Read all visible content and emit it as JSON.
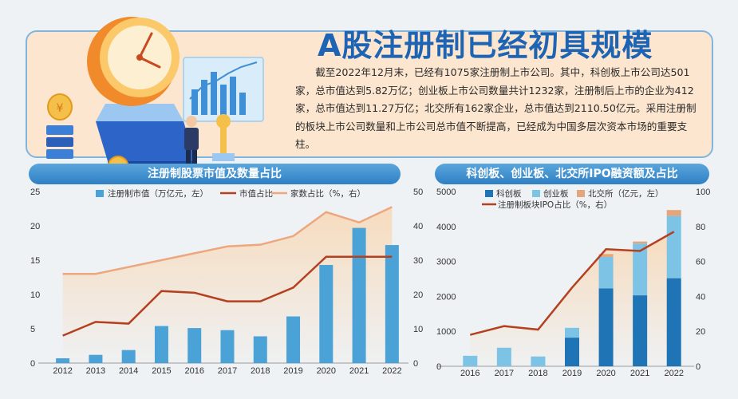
{
  "header": {
    "title": "A股注册制已经初具规模",
    "intro": "截至2022年12月末，已经有1075家注册制上市公司。其中，科创板上市公司达501家，总市值达到5.82万亿；创业板上市公司数量共计1232家，注册制后上市的企业为412家，总市值达到11.27万亿；北交所有162家企业，总市值达到2110.50亿元。采用注册制的板块上市公司数量和上市公司总市值不断提高，已经成为中国多层次资本市场的重要支柱。"
  },
  "colors": {
    "bar_blue": "#4aa2d6",
    "line_red": "#b5401f",
    "line_orange": "#eda77f",
    "star": "#1f74b6",
    "chinext": "#7cc3e6",
    "bse": "#e2a57c"
  },
  "chart_data": [
    {
      "type": "bar",
      "title": "注册制股票市值及数量占比",
      "categories": [
        "2012",
        "2013",
        "2014",
        "2015",
        "2016",
        "2017",
        "2018",
        "2019",
        "2020",
        "2021",
        "2022"
      ],
      "series": [
        {
          "name": "注册制市值（万亿元，左）",
          "type": "bar",
          "axis": "left",
          "values": [
            0.7,
            1.2,
            1.9,
            5.4,
            5.1,
            4.8,
            3.9,
            6.8,
            14.3,
            19.7,
            17.2
          ]
        },
        {
          "name": "市值占比",
          "type": "line",
          "axis": "right",
          "values": [
            8,
            12,
            11.5,
            21,
            20.5,
            18,
            18,
            22,
            31,
            31,
            31
          ]
        },
        {
          "name": "家数占比（%，右）",
          "type": "line",
          "axis": "right",
          "values": [
            26,
            26,
            28,
            30,
            32,
            34,
            34.5,
            37,
            44,
            41,
            45.5
          ]
        }
      ],
      "left_axis": {
        "min": 0,
        "max": 25,
        "ticks": [
          0,
          5,
          10,
          15,
          20,
          25
        ]
      },
      "right_axis": {
        "min": 0,
        "max": 50,
        "ticks": [
          0,
          10,
          20,
          30,
          40,
          50
        ]
      },
      "grid": false,
      "legend": "top"
    },
    {
      "type": "bar",
      "stacked": true,
      "title": "科创板、创业板、北交所IPO融资额及占比",
      "categories": [
        "2016",
        "2017",
        "2018",
        "2019",
        "2020",
        "2021",
        "2022"
      ],
      "series": [
        {
          "name": "科创板",
          "type": "bar",
          "axis": "left",
          "values": [
            0,
            0,
            0,
            820,
            2230,
            2030,
            2520
          ]
        },
        {
          "name": "创业板",
          "type": "bar",
          "axis": "left",
          "values": [
            300,
            530,
            280,
            280,
            900,
            1480,
            1780
          ]
        },
        {
          "name": "北交所（亿元，左）",
          "type": "bar",
          "axis": "left",
          "values": [
            0,
            0,
            0,
            0,
            80,
            60,
            170
          ]
        },
        {
          "name": "注册制板块IPO占比（%，右）",
          "type": "line",
          "axis": "right",
          "values": [
            18,
            23,
            21,
            45,
            67,
            66,
            77
          ]
        }
      ],
      "left_axis": {
        "min": 0,
        "max": 5000,
        "ticks": [
          0,
          1000,
          2000,
          3000,
          4000,
          5000
        ]
      },
      "right_axis": {
        "min": 0,
        "max": 100,
        "ticks": [
          0,
          20,
          40,
          60,
          80,
          100
        ]
      },
      "grid": false,
      "legend": "top"
    }
  ]
}
